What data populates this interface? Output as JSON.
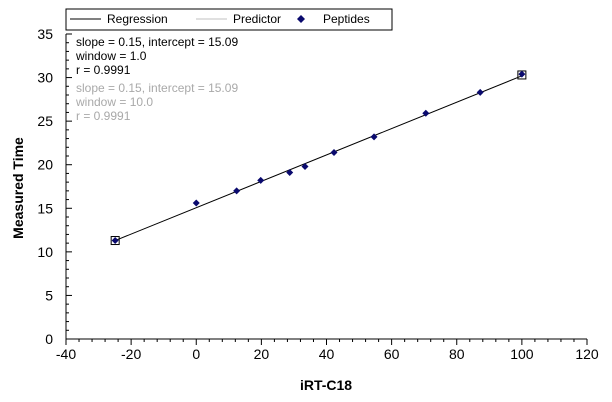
{
  "chart_data": {
    "type": "scatter",
    "title": "",
    "xlabel": "iRT-C18",
    "ylabel": "Measured Time",
    "xlim": [
      -40,
      120
    ],
    "ylim": [
      0,
      35
    ],
    "x_ticks": [
      -40,
      -20,
      0,
      20,
      40,
      60,
      80,
      100,
      120
    ],
    "y_ticks": [
      0,
      5,
      10,
      15,
      20,
      25,
      30,
      35
    ],
    "grid": false,
    "legend": {
      "placement": "top",
      "entries": [
        "Regression",
        "Predictor",
        "Peptides"
      ]
    },
    "series": [
      {
        "name": "Peptides",
        "kind": "scatter",
        "color": "#0a0a6e",
        "x": [
          -24.9,
          0.0,
          12.4,
          19.8,
          28.7,
          33.4,
          42.3,
          54.6,
          70.5,
          87.2,
          100.0
        ],
        "y": [
          11.3,
          15.6,
          17.0,
          18.2,
          19.1,
          19.8,
          21.4,
          23.2,
          25.9,
          28.3,
          30.4
        ]
      },
      {
        "name": "Regression",
        "kind": "line",
        "color": "#000000",
        "x": [
          -24.9,
          100.0
        ],
        "y": [
          11.3,
          30.2
        ]
      }
    ],
    "boxed_points": [
      {
        "x": -24.9,
        "y": 11.3
      },
      {
        "x": 100.0,
        "y": 30.3
      }
    ],
    "annotations": {
      "regression_stats": [
        "slope = 0.15, intercept = 15.09",
        "window = 1.0",
        "r = 0.9991"
      ],
      "predictor_stats": [
        "slope = 0.15, intercept = 15.09",
        "window = 10.0",
        "r = 0.9991"
      ]
    },
    "colors": {
      "regression": "#000000",
      "predictor": "#c0c0c0",
      "peptides": "#0a0a6e",
      "predictor_text": "#a9a9a9"
    }
  }
}
